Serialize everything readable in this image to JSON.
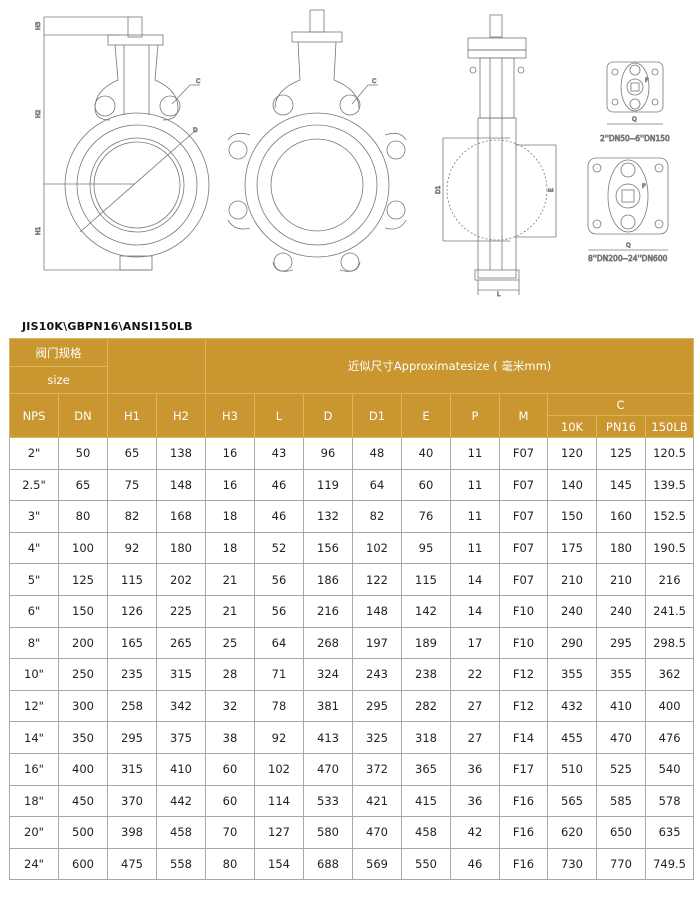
{
  "drawing": {
    "front_labels": {
      "h3": "H3",
      "h2": "H2",
      "h1": "H1",
      "c": "C",
      "d": "D"
    },
    "lug_labels": {
      "c": "C"
    },
    "side_labels": {
      "d1": "D1",
      "e": "E",
      "l": "L"
    },
    "top_small": {
      "q": "Q",
      "p": "P",
      "caption": "2''DN50--6''DN150"
    },
    "top_large": {
      "q": "Q",
      "p": "P",
      "caption": "8''DN200--24''DN600"
    }
  },
  "spec_title": "JIS10K\\GBPN16\\ANSI150LB",
  "table": {
    "header": {
      "valve_spec": "阀门规格",
      "size": "size",
      "approx": "近似尺寸Approximatesize ( 毫米mm)",
      "columns": [
        "NPS",
        "DN",
        "H1",
        "H2",
        "H3",
        "L",
        "D",
        "D1",
        "E",
        "P",
        "M"
      ],
      "c_group": "C",
      "c_columns": [
        "10K",
        "PN16",
        "150LB"
      ]
    },
    "rows": [
      [
        "2\"",
        "50",
        "65",
        "138",
        "16",
        "43",
        "96",
        "48",
        "40",
        "11",
        "F07",
        "120",
        "125",
        "120.5"
      ],
      [
        "2.5\"",
        "65",
        "75",
        "148",
        "16",
        "46",
        "119",
        "64",
        "60",
        "11",
        "F07",
        "140",
        "145",
        "139.5"
      ],
      [
        "3\"",
        "80",
        "82",
        "168",
        "18",
        "46",
        "132",
        "82",
        "76",
        "11",
        "F07",
        "150",
        "160",
        "152.5"
      ],
      [
        "4\"",
        "100",
        "92",
        "180",
        "18",
        "52",
        "156",
        "102",
        "95",
        "11",
        "F07",
        "175",
        "180",
        "190.5"
      ],
      [
        "5\"",
        "125",
        "115",
        "202",
        "21",
        "56",
        "186",
        "122",
        "115",
        "14",
        "F07",
        "210",
        "210",
        "216"
      ],
      [
        "6\"",
        "150",
        "126",
        "225",
        "21",
        "56",
        "216",
        "148",
        "142",
        "14",
        "F10",
        "240",
        "240",
        "241.5"
      ],
      [
        "8\"",
        "200",
        "165",
        "265",
        "25",
        "64",
        "268",
        "197",
        "189",
        "17",
        "F10",
        "290",
        "295",
        "298.5"
      ],
      [
        "10\"",
        "250",
        "235",
        "315",
        "28",
        "71",
        "324",
        "243",
        "238",
        "22",
        "F12",
        "355",
        "355",
        "362"
      ],
      [
        "12\"",
        "300",
        "258",
        "342",
        "32",
        "78",
        "381",
        "295",
        "282",
        "27",
        "F12",
        "432",
        "410",
        "400"
      ],
      [
        "14\"",
        "350",
        "295",
        "375",
        "38",
        "92",
        "413",
        "325",
        "318",
        "27",
        "F14",
        "455",
        "470",
        "476"
      ],
      [
        "16\"",
        "400",
        "315",
        "410",
        "60",
        "102",
        "470",
        "372",
        "365",
        "36",
        "F17",
        "510",
        "525",
        "540"
      ],
      [
        "18\"",
        "450",
        "370",
        "442",
        "60",
        "114",
        "533",
        "421",
        "415",
        "36",
        "F16",
        "565",
        "585",
        "578"
      ],
      [
        "20\"",
        "500",
        "398",
        "458",
        "70",
        "127",
        "580",
        "470",
        "458",
        "42",
        "F16",
        "620",
        "650",
        "635"
      ],
      [
        "24\"",
        "600",
        "475",
        "558",
        "80",
        "154",
        "688",
        "569",
        "550",
        "46",
        "F16",
        "730",
        "770",
        "749.5"
      ]
    ]
  }
}
